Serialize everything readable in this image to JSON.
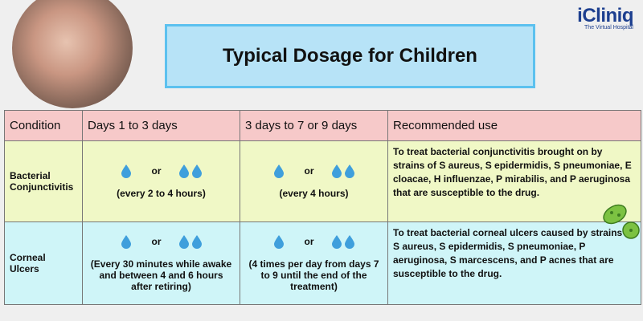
{
  "logo": {
    "name": "iCliniq",
    "tagline": "The Virtual Hospital"
  },
  "header": {
    "title": "Typical Dosage for Children"
  },
  "table": {
    "columns": [
      "Condition",
      "Days 1 to 3 days",
      "3 days to 7 or 9 days",
      "Recommended use"
    ],
    "rows": [
      {
        "condition": "Bacterial Conjunctivitis",
        "days_1_to_3": {
          "dose": "or",
          "frequency": "(every 2 to 4 hours)"
        },
        "days_3_to_9": {
          "dose": "or",
          "frequency": "(every 4 hours)"
        },
        "recommended_use": "To treat bacterial conjunctivitis brought on by strains of S aureus, S epidermidis, S pneumoniae, E cloacae, H influenzae, P mirabilis, and P aeruginosa that are susceptible to the drug."
      },
      {
        "condition": "Corneal Ulcers",
        "days_1_to_3": {
          "dose": "or",
          "frequency": "(Every 30 minutes while awake and between 4 and 6 hours after retiring)"
        },
        "days_3_to_9": {
          "dose": "or",
          "frequency": "(4 times per day from days 7 to 9 until the end of the treatment)"
        },
        "recommended_use": "To treat bacterial corneal ulcers caused by strains of S aureus, S epidermidis, S pneumoniae, P aeruginosa, S marcescens, and P acnes that are susceptible to the drug."
      }
    ]
  }
}
